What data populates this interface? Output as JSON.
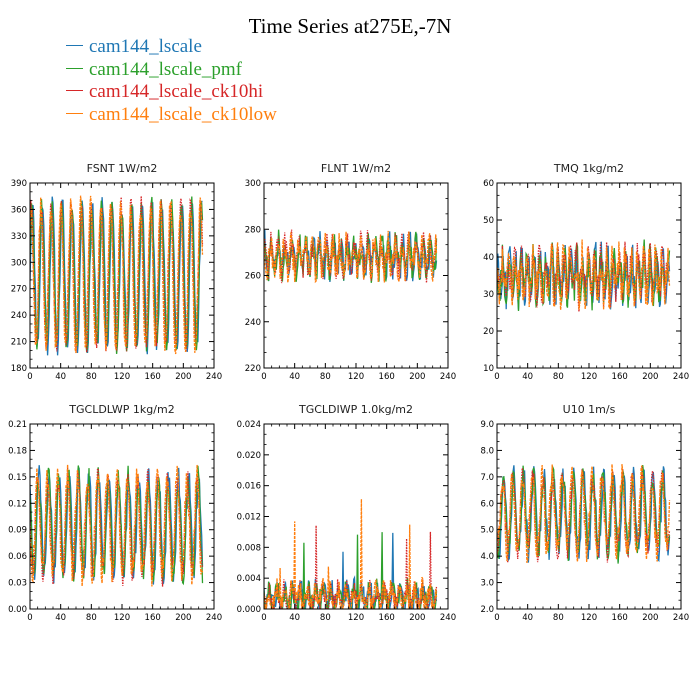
{
  "title": "Time Series at275E,-7N",
  "legend": [
    {
      "label": "cam144_lscale",
      "color": "#1f77b4"
    },
    {
      "label": "cam144_lscale_pmf",
      "color": "#2ca02c"
    },
    {
      "label": "cam144_lscale_ck10hi",
      "color": "#d62728"
    },
    {
      "label": "cam144_lscale_ck10low",
      "color": "#ff7f0e"
    }
  ],
  "chart_data": [
    {
      "type": "line",
      "title": "FSNT   1W/m2",
      "xlim": [
        0,
        240
      ],
      "ylim": [
        180,
        390
      ],
      "xticks": [
        "0",
        "40",
        "80",
        "120",
        "160",
        "200",
        "240"
      ],
      "yticks": [
        "180",
        "210",
        "240",
        "270",
        "300",
        "330",
        "360",
        "390"
      ],
      "n_points": 226,
      "mean": 285,
      "amplitude": 80,
      "period": 13,
      "noise": 12,
      "min_clip": 185,
      "max_clip": 385
    },
    {
      "type": "line",
      "title": "FLNT   1W/m2",
      "xlim": [
        0,
        240
      ],
      "ylim": [
        220,
        300
      ],
      "xticks": [
        "0",
        "40",
        "80",
        "120",
        "160",
        "200",
        "240"
      ],
      "yticks": [
        "220",
        "240",
        "260",
        "280",
        "300"
      ],
      "n_points": 226,
      "mean": 268,
      "amplitude": 6,
      "period": 9,
      "noise": 6,
      "min_clip": 225,
      "max_clip": 295
    },
    {
      "type": "line",
      "title": "TMQ   1kg/m2",
      "xlim": [
        0,
        240
      ],
      "ylim": [
        10,
        60
      ],
      "xticks": [
        "0",
        "40",
        "80",
        "120",
        "160",
        "200",
        "240"
      ],
      "yticks": [
        "10",
        "20",
        "30",
        "40",
        "50",
        "60"
      ],
      "n_points": 226,
      "mean": 35,
      "amplitude": 5,
      "period": 8,
      "noise": 5,
      "min_clip": 18,
      "max_clip": 54
    },
    {
      "type": "line",
      "title": "TGCLDLWP   1kg/m2",
      "xlim": [
        0,
        240
      ],
      "ylim": [
        0.0,
        0.21
      ],
      "xticks": [
        "0",
        "40",
        "80",
        "120",
        "160",
        "200",
        "240"
      ],
      "yticks": [
        "0.00",
        "0.03",
        "0.06",
        "0.09",
        "0.12",
        "0.15",
        "0.18",
        "0.21"
      ],
      "n_points": 226,
      "mean": 0.095,
      "amplitude": 0.055,
      "period": 13,
      "noise": 0.015,
      "min_clip": 0.01,
      "max_clip": 0.185
    },
    {
      "type": "line",
      "title": "TGCLDIWP   1.0kg/m2",
      "xlim": [
        0,
        240
      ],
      "ylim": [
        0.0,
        0.024
      ],
      "xticks": [
        "0",
        "40",
        "80",
        "120",
        "160",
        "200",
        "240"
      ],
      "yticks": [
        "0.000",
        "0.004",
        "0.008",
        "0.012",
        "0.016",
        "0.020",
        "0.024"
      ],
      "n_points": 226,
      "mean": 0.0015,
      "amplitude": 0.0012,
      "period": 10,
      "noise": 0.0015,
      "min_clip": 0.0,
      "max_clip": 0.0225
    },
    {
      "type": "line",
      "title": "U10   1m/s",
      "xlim": [
        0,
        240
      ],
      "ylim": [
        2.0,
        9.0
      ],
      "xticks": [
        "0",
        "40",
        "80",
        "120",
        "160",
        "200",
        "240"
      ],
      "yticks": [
        "2.0",
        "3.0",
        "4.0",
        "5.0",
        "6.0",
        "7.0",
        "8.0",
        "9.0"
      ],
      "n_points": 226,
      "mean": 5.6,
      "amplitude": 1.4,
      "period": 13,
      "noise": 0.5,
      "min_clip": 2.4,
      "max_clip": 8.1
    }
  ]
}
